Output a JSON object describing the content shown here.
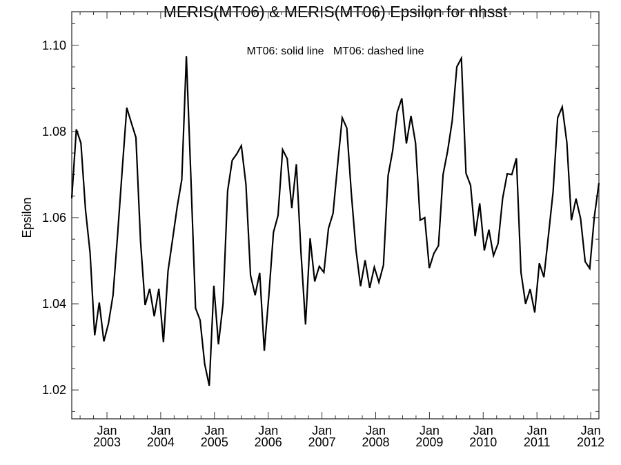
{
  "chart_data": {
    "type": "line",
    "title": "MERIS(MT06) & MERIS(MT06)  Epsilon for nhsst",
    "annotation": "MT06: solid line   MT06: dashed line",
    "xlabel": "",
    "ylabel": "Epsilon",
    "xlim": [
      2002.345,
      2012.153
    ],
    "ylim": [
      1.0133,
      1.1078
    ],
    "yticks": [
      {
        "value": 1.02,
        "label": "1.02"
      },
      {
        "value": 1.04,
        "label": "1.04"
      },
      {
        "value": 1.06,
        "label": "1.06"
      },
      {
        "value": 1.08,
        "label": "1.08"
      },
      {
        "value": 1.1,
        "label": "1.10"
      }
    ],
    "xticks": [
      {
        "value": 2003,
        "label": [
          "Jan",
          "2003"
        ]
      },
      {
        "value": 2004,
        "label": [
          "Jan",
          "2004"
        ]
      },
      {
        "value": 2005,
        "label": [
          "Jan",
          "2005"
        ]
      },
      {
        "value": 2006,
        "label": [
          "Jan",
          "2006"
        ]
      },
      {
        "value": 2007,
        "label": [
          "Jan",
          "2007"
        ]
      },
      {
        "value": 2008,
        "label": [
          "Jan",
          "2008"
        ]
      },
      {
        "value": 2009,
        "label": [
          "Jan",
          "2009"
        ]
      },
      {
        "value": 2010,
        "label": [
          "Jan",
          "2010"
        ]
      },
      {
        "value": 2011,
        "label": [
          "Jan",
          "2011"
        ]
      },
      {
        "value": 2012,
        "label": [
          "Jan",
          "2012"
        ]
      }
    ],
    "grid": false,
    "series": [
      {
        "name": "MT06 solid",
        "color": "#000000",
        "values": [
          1.0645,
          1.0805,
          1.0773,
          1.0618,
          1.0518,
          1.0327,
          1.0403,
          1.0313,
          1.0354,
          1.042,
          1.056,
          1.071,
          1.0855,
          1.082,
          1.0786,
          1.0546,
          1.0397,
          1.0435,
          1.0371,
          1.0435,
          1.0311,
          1.0476,
          1.055,
          1.0625,
          1.0688,
          1.0975,
          1.069,
          1.039,
          1.0362,
          1.026,
          1.021,
          1.0442,
          1.0306,
          1.04,
          1.0662,
          1.0733,
          1.0748,
          1.0767,
          1.0677,
          1.0466,
          1.042,
          1.0472,
          1.0291,
          1.042,
          1.0566,
          1.0605,
          1.0758,
          1.0737,
          1.0622,
          1.0724,
          1.052,
          1.0352,
          1.0552,
          1.0452,
          1.0487,
          1.0473,
          1.0575,
          1.061,
          1.0723,
          1.0832,
          1.0808,
          1.0655,
          1.0525,
          1.0441,
          1.0501,
          1.0437,
          1.0485,
          1.045,
          1.049,
          1.0697,
          1.0755,
          1.0845,
          1.0877,
          1.0772,
          1.0836,
          1.0773,
          1.0594,
          1.06,
          1.0483,
          1.0517,
          1.0535,
          1.07,
          1.0755,
          1.0825,
          1.095,
          1.097,
          1.0703,
          1.0675,
          1.0557,
          1.0633,
          1.0524,
          1.0572,
          1.0512,
          1.054,
          1.0645,
          1.0702,
          1.07,
          1.0738,
          1.0473,
          1.04,
          1.0434,
          1.038,
          1.0494,
          1.0462,
          1.056,
          1.066,
          1.0832,
          1.0857,
          1.0775,
          1.0594,
          1.0644,
          1.0598,
          1.0498,
          1.0482,
          1.0602,
          1.068
        ]
      }
    ]
  }
}
